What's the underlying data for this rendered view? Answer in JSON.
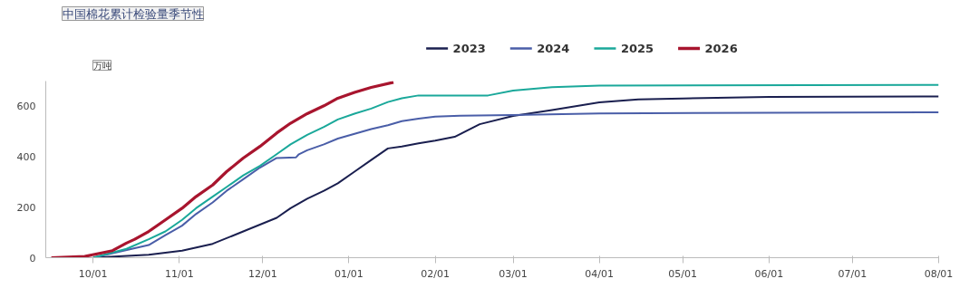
{
  "chart_data": {
    "type": "line",
    "title": "中国棉花累计检验量季节性",
    "ylabel": "万吨",
    "legend": "top",
    "grid": false,
    "marker": "none",
    "line_style": "solid",
    "xlim": [
      "2025-09-14",
      "2026-08-01"
    ],
    "ylim": [
      0,
      700
    ],
    "yticks": [
      0,
      200,
      400,
      600
    ],
    "xticks": [
      {
        "value": "2025-10-01",
        "label": "10/01"
      },
      {
        "value": "2025-11-01",
        "label": "11/01"
      },
      {
        "value": "2025-12-01",
        "label": "12/01"
      },
      {
        "value": "2026-01-01",
        "label": "01/01"
      },
      {
        "value": "2026-02-01",
        "label": "02/01"
      },
      {
        "value": "2026-03-01",
        "label": "03/01"
      },
      {
        "value": "2026-04-01",
        "label": "04/01"
      },
      {
        "value": "2026-05-01",
        "label": "05/01"
      },
      {
        "value": "2026-06-01",
        "label": "06/01"
      },
      {
        "value": "2026-07-01",
        "label": "07/01"
      },
      {
        "value": "2026-08-01",
        "label": "08/01"
      }
    ],
    "series": [
      {
        "name": "2023",
        "color": "#1a1f4f",
        "x": [
          "2025-10-01",
          "2025-10-21",
          "2025-11-02",
          "2025-11-13",
          "2025-11-24",
          "2025-12-06",
          "2025-12-11",
          "2025-12-17",
          "2025-12-23",
          "2025-12-28",
          "2026-01-03",
          "2026-01-09",
          "2026-01-15",
          "2026-01-20",
          "2026-01-26",
          "2026-02-01",
          "2026-02-08",
          "2026-02-17",
          "2026-03-01",
          "2026-03-15",
          "2026-04-01",
          "2026-04-15",
          "2026-05-01",
          "2026-06-01",
          "2026-08-01"
        ],
        "values": [
          0,
          12,
          28,
          55,
          104,
          158,
          196,
          234,
          265,
          295,
          341,
          387,
          433,
          441,
          453,
          464,
          479,
          529,
          562,
          585,
          616,
          627,
          631,
          637,
          639
        ]
      },
      {
        "name": "2024",
        "color": "#4a5ea8",
        "x": [
          "2025-10-01",
          "2025-10-21",
          "2025-10-27",
          "2025-11-02",
          "2025-11-07",
          "2025-11-13",
          "2025-11-18",
          "2025-11-24",
          "2025-11-30",
          "2025-12-06",
          "2025-12-13",
          "2025-12-14",
          "2025-12-17",
          "2025-12-23",
          "2025-12-28",
          "2026-01-03",
          "2026-01-09",
          "2026-01-15",
          "2026-01-20",
          "2026-01-26",
          "2026-02-01",
          "2026-02-10",
          "2026-03-01",
          "2026-04-01",
          "2026-08-01"
        ],
        "values": [
          0,
          50,
          89,
          127,
          173,
          219,
          265,
          311,
          357,
          395,
          398,
          410,
          426,
          449,
          472,
          491,
          510,
          525,
          541,
          551,
          559,
          563,
          565,
          572,
          576
        ]
      },
      {
        "name": "2025",
        "color": "#1aa89a",
        "x": [
          "2025-10-01",
          "2025-10-13",
          "2025-10-21",
          "2025-10-27",
          "2025-11-02",
          "2025-11-07",
          "2025-11-13",
          "2025-11-18",
          "2025-11-24",
          "2025-11-30",
          "2025-12-06",
          "2025-12-11",
          "2025-12-17",
          "2025-12-23",
          "2025-12-28",
          "2026-01-03",
          "2026-01-09",
          "2026-01-15",
          "2026-01-20",
          "2026-01-26",
          "2026-02-20",
          "2026-03-01",
          "2026-03-15",
          "2026-04-01",
          "2026-08-01"
        ],
        "values": [
          0,
          35,
          73,
          104,
          150,
          196,
          242,
          280,
          326,
          364,
          410,
          449,
          487,
          518,
          548,
          571,
          591,
          617,
          632,
          643,
          643,
          662,
          676,
          682,
          685
        ]
      },
      {
        "name": "2026",
        "color": "#a8152e",
        "x": [
          "2025-09-16",
          "2025-09-28",
          "2025-10-08",
          "2025-10-13",
          "2025-10-16",
          "2025-10-21",
          "2025-10-27",
          "2025-11-02",
          "2025-11-07",
          "2025-11-13",
          "2025-11-18",
          "2025-11-24",
          "2025-11-30",
          "2025-12-06",
          "2025-12-11",
          "2025-12-17",
          "2025-12-23",
          "2025-12-28",
          "2026-01-03",
          "2026-01-09",
          "2026-01-17"
        ],
        "values": [
          0,
          5,
          28,
          58,
          73,
          104,
          150,
          196,
          242,
          288,
          341,
          395,
          441,
          494,
          533,
          571,
          602,
          632,
          655,
          675,
          695
        ]
      }
    ]
  }
}
